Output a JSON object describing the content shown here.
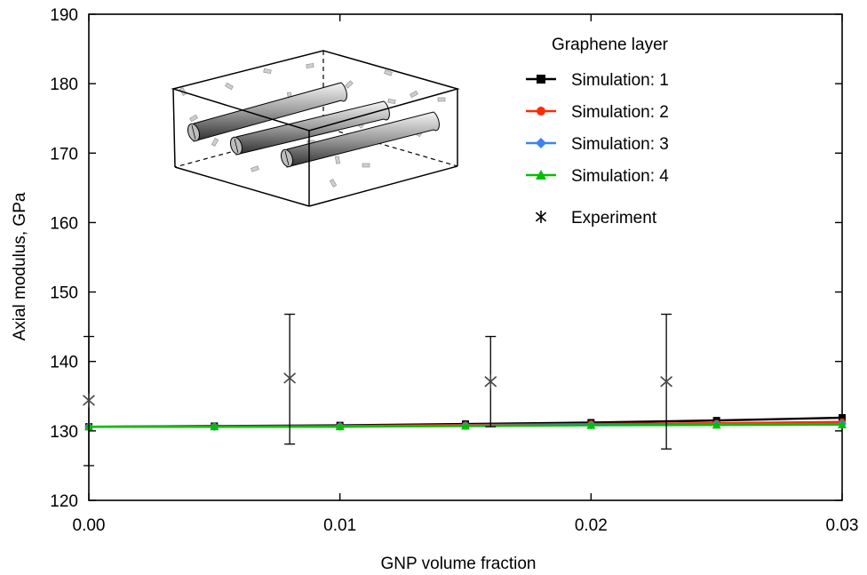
{
  "chart_data": {
    "type": "line",
    "xlabel": "GNP volume fraction",
    "ylabel": "Axial modulus, GPa",
    "xlim": [
      0,
      0.03
    ],
    "ylim": [
      120,
      190
    ],
    "x_ticks": [
      "0.00",
      "0.01",
      "0.02",
      "0.03"
    ],
    "y_ticks": [
      "120",
      "130",
      "140",
      "150",
      "160",
      "170",
      "180",
      "190"
    ],
    "legend_title": "Graphene layer",
    "legend_position": "top-right",
    "grid": false,
    "x": [
      0,
      0.005,
      0.01,
      0.015,
      0.02,
      0.025,
      0.03
    ],
    "series": [
      {
        "name": "Simulation: 1",
        "color": "#000000",
        "marker": "square",
        "values": [
          130.6,
          130.7,
          130.8,
          131.0,
          131.2,
          131.5,
          131.9
        ]
      },
      {
        "name": "Simulation: 2",
        "color": "#ff2a00",
        "marker": "circle",
        "values": [
          130.6,
          130.65,
          130.7,
          130.85,
          131.0,
          131.1,
          131.3
        ]
      },
      {
        "name": "Simulation: 3",
        "color": "#3b82f6",
        "marker": "diamond",
        "values": [
          130.6,
          130.6,
          130.65,
          130.75,
          130.85,
          130.95,
          131.0
        ]
      },
      {
        "name": "Simulation: 4",
        "color": "#00c000",
        "marker": "triangle",
        "values": [
          130.6,
          130.6,
          130.6,
          130.7,
          130.8,
          130.85,
          130.9
        ]
      }
    ],
    "experiment": {
      "name": "Experiment",
      "color": "#444444",
      "marker": "star",
      "points": [
        {
          "x": 0.0,
          "y": 134.4,
          "low": 125.0,
          "high": 143.6
        },
        {
          "x": 0.008,
          "y": 137.6,
          "low": 128.1,
          "high": 146.8
        },
        {
          "x": 0.016,
          "y": 137.1,
          "low": 130.6,
          "high": 143.6
        },
        {
          "x": 0.023,
          "y": 137.1,
          "low": 127.4,
          "high": 146.8
        }
      ]
    }
  }
}
